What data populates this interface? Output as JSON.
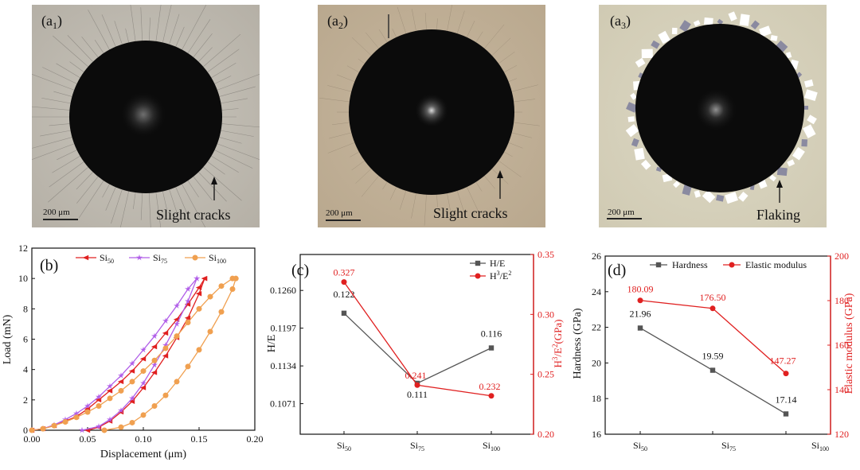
{
  "micrographs": [
    {
      "label_main": "(a",
      "label_sub": "1",
      "label_end": ")",
      "scale_bar": "200 μm",
      "annotation": "Slight cracks"
    },
    {
      "label_main": "(a",
      "label_sub": "2",
      "label_end": ")",
      "scale_bar": "200 μm",
      "annotation": "Slight cracks"
    },
    {
      "label_main": "(a",
      "label_sub": "3",
      "label_end": ")",
      "scale_bar": "200 μm",
      "annotation": "Flaking"
    }
  ],
  "colors": {
    "red": "#e02020",
    "purple": "#b05de8",
    "orange": "#f0a050",
    "dark": "#555555"
  },
  "chart_data": [
    {
      "panel": "(b)",
      "type": "line",
      "xlabel": "Displacement (μm)",
      "ylabel": "Load (mN)",
      "xlim": [
        0,
        0.2
      ],
      "ylim": [
        0,
        12
      ],
      "xticks": [
        "0.00",
        "0.05",
        "0.10",
        "0.15",
        "0.20"
      ],
      "yticks": [
        "0",
        "2",
        "4",
        "6",
        "8",
        "10",
        "12"
      ],
      "legend_position": "top",
      "series": [
        {
          "name": "Si",
          "sub": "50",
          "color": "#e02020",
          "marker": "triangle-left",
          "loading": [
            [
              0,
              0
            ],
            [
              0.01,
              0.1
            ],
            [
              0.02,
              0.3
            ],
            [
              0.03,
              0.6
            ],
            [
              0.04,
              0.9
            ],
            [
              0.05,
              1.4
            ],
            [
              0.06,
              2.0
            ],
            [
              0.07,
              2.6
            ],
            [
              0.08,
              3.2
            ],
            [
              0.09,
              3.9
            ],
            [
              0.1,
              4.7
            ],
            [
              0.11,
              5.5
            ],
            [
              0.12,
              6.4
            ],
            [
              0.13,
              7.3
            ],
            [
              0.14,
              8.3
            ],
            [
              0.15,
              9.4
            ],
            [
              0.155,
              10.0
            ]
          ],
          "unloading": [
            [
              0.155,
              10.0
            ],
            [
              0.15,
              9.0
            ],
            [
              0.14,
              7.4
            ],
            [
              0.13,
              6.1
            ],
            [
              0.12,
              4.9
            ],
            [
              0.11,
              3.8
            ],
            [
              0.1,
              2.8
            ],
            [
              0.09,
              1.9
            ],
            [
              0.08,
              1.2
            ],
            [
              0.07,
              0.6
            ],
            [
              0.06,
              0.2
            ],
            [
              0.05,
              0.0
            ]
          ]
        },
        {
          "name": "Si",
          "sub": "75",
          "color": "#b05de8",
          "marker": "star",
          "loading": [
            [
              0,
              0
            ],
            [
              0.01,
              0.1
            ],
            [
              0.02,
              0.35
            ],
            [
              0.03,
              0.7
            ],
            [
              0.04,
              1.1
            ],
            [
              0.05,
              1.6
            ],
            [
              0.06,
              2.2
            ],
            [
              0.07,
              2.9
            ],
            [
              0.08,
              3.6
            ],
            [
              0.09,
              4.4
            ],
            [
              0.1,
              5.3
            ],
            [
              0.11,
              6.2
            ],
            [
              0.12,
              7.2
            ],
            [
              0.13,
              8.2
            ],
            [
              0.14,
              9.3
            ],
            [
              0.148,
              10.0
            ]
          ],
          "unloading": [
            [
              0.148,
              10.0
            ],
            [
              0.14,
              8.5
            ],
            [
              0.13,
              7.0
            ],
            [
              0.12,
              5.6
            ],
            [
              0.11,
              4.3
            ],
            [
              0.1,
              3.1
            ],
            [
              0.09,
              2.1
            ],
            [
              0.08,
              1.3
            ],
            [
              0.07,
              0.7
            ],
            [
              0.06,
              0.25
            ],
            [
              0.045,
              0.0
            ]
          ]
        },
        {
          "name": "Si",
          "sub": "100",
          "color": "#f0a050",
          "marker": "circle",
          "loading": [
            [
              0,
              0
            ],
            [
              0.01,
              0.1
            ],
            [
              0.02,
              0.3
            ],
            [
              0.03,
              0.55
            ],
            [
              0.04,
              0.85
            ],
            [
              0.05,
              1.2
            ],
            [
              0.06,
              1.6
            ],
            [
              0.07,
              2.1
            ],
            [
              0.08,
              2.6
            ],
            [
              0.09,
              3.2
            ],
            [
              0.1,
              3.9
            ],
            [
              0.11,
              4.6
            ],
            [
              0.12,
              5.4
            ],
            [
              0.13,
              6.2
            ],
            [
              0.14,
              7.1
            ],
            [
              0.15,
              8.0
            ],
            [
              0.16,
              8.8
            ],
            [
              0.17,
              9.5
            ],
            [
              0.18,
              10.0
            ]
          ],
          "unloading": [
            [
              0.183,
              10.0
            ],
            [
              0.18,
              9.3
            ],
            [
              0.17,
              7.8
            ],
            [
              0.16,
              6.5
            ],
            [
              0.15,
              5.3
            ],
            [
              0.14,
              4.2
            ],
            [
              0.13,
              3.2
            ],
            [
              0.12,
              2.3
            ],
            [
              0.11,
              1.6
            ],
            [
              0.1,
              1.0
            ],
            [
              0.09,
              0.5
            ],
            [
              0.08,
              0.2
            ],
            [
              0.065,
              0.0
            ]
          ]
        }
      ]
    },
    {
      "panel": "(c)",
      "type": "line",
      "categories": [
        {
          "main": "Si",
          "sub": "50"
        },
        {
          "main": "Si",
          "sub": "75"
        },
        {
          "main": "Si",
          "sub": "100"
        }
      ],
      "ylabel": "H/E",
      "ylim": [
        0.102,
        0.132
      ],
      "yticks": [
        "0.1071",
        "0.1134",
        "0.1197",
        "0.1260"
      ],
      "ytick_values": [
        0.1071,
        0.1134,
        0.1197,
        0.126
      ],
      "y2label_main": "H",
      "y2label_sup1": "3",
      "y2label_mid": "/E",
      "y2label_sup2": "2",
      "y2label_end": "(GPa)",
      "y2lim": [
        0.2,
        0.35
      ],
      "y2ticks": [
        "0.20",
        "0.25",
        "0.30",
        "0.35"
      ],
      "legend_position": "top-right",
      "series": [
        {
          "name": "H/E",
          "color": "#555555",
          "marker": "square",
          "axis": "left",
          "values": [
            0.1222,
            0.1105,
            0.1164
          ],
          "labels": [
            "0.122",
            "0.111",
            "0.116"
          ]
        },
        {
          "name_main": "H",
          "name_sup1": "3",
          "name_mid": "/E",
          "name_sup2": "2",
          "color": "#e02020",
          "marker": "circle",
          "axis": "right",
          "values": [
            0.327,
            0.241,
            0.232
          ],
          "labels": [
            "0.327",
            "0.241",
            "0.232"
          ]
        }
      ]
    },
    {
      "panel": "(d)",
      "type": "line",
      "categories": [
        {
          "main": "Si",
          "sub": "50"
        },
        {
          "main": "Si",
          "sub": "75"
        },
        {
          "main": "Si",
          "sub": "100"
        }
      ],
      "ylabel": "Hardness (GPa)",
      "ylim": [
        16,
        26
      ],
      "yticks": [
        "16",
        "18",
        "20",
        "22",
        "24",
        "26"
      ],
      "y2label": "Elastic modulus (GPa)",
      "y2lim": [
        120,
        200
      ],
      "y2ticks": [
        "120",
        "140",
        "160",
        "180",
        "200"
      ],
      "legend_position": "top",
      "series": [
        {
          "name": "Hardness",
          "color": "#555555",
          "marker": "square",
          "axis": "left",
          "values": [
            21.96,
            19.59,
            17.14
          ],
          "labels": [
            "21.96",
            "19.59",
            "17.14"
          ]
        },
        {
          "name": "Elastic modulus",
          "color": "#e02020",
          "marker": "circle",
          "axis": "right",
          "values": [
            180.09,
            176.5,
            147.27
          ],
          "labels": [
            "180.09",
            "176.50",
            "147.27"
          ]
        }
      ]
    }
  ]
}
